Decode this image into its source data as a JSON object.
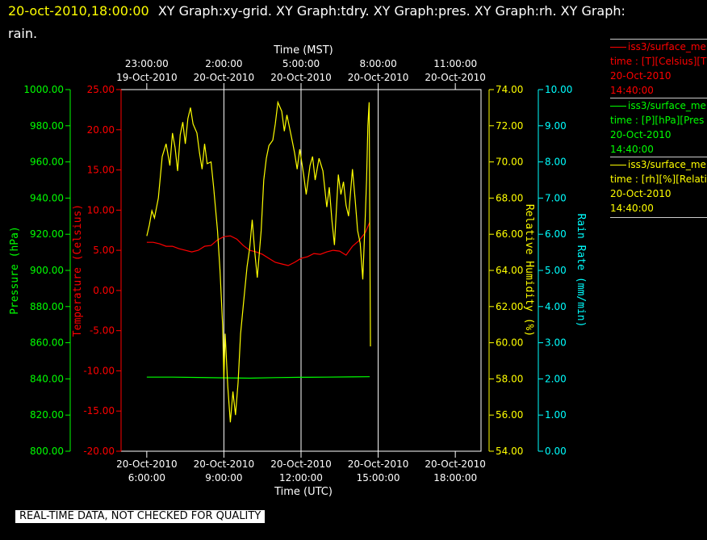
{
  "header": {
    "timestamp": "20-oct-2010,18:00:00",
    "rest_line1": "XY Graph:xy-grid.  XY Graph:tdry.  XY Graph:pres.  XY Graph:rh.  XY Graph:",
    "line2": "rain."
  },
  "legend": [
    {
      "line1": "iss3/surface_me",
      "line2": "time : [T][Celsius][T",
      "date": "20-Oct-2010",
      "time": "14:40:00",
      "color": "#ff0000"
    },
    {
      "line1": "iss3/surface_me",
      "line2": "time : [P][hPa][Pres",
      "date": "20-Oct-2010",
      "time": "14:40:00",
      "color": "#00ff00"
    },
    {
      "line1": "iss3/surface_me",
      "line2": "time : [rh][%][Relati",
      "date": "20-Oct-2010",
      "time": "14:40:00",
      "color": "#ffff00"
    }
  ],
  "notice": "REAL-TIME DATA, NOT CHECKED FOR QUALITY",
  "colors": {
    "temp": "#ff0000",
    "pres": "#00ff00",
    "rh": "#ffff00",
    "rain": "#00ffff",
    "axis": "#ffffff"
  },
  "chart_data": {
    "type": "line",
    "x_bottom": {
      "label": "Time (UTC)",
      "range_hours_utc": [
        5,
        19
      ],
      "ticks": [
        {
          "hour": 6,
          "date": "20-Oct-2010",
          "time": "6:00:00"
        },
        {
          "hour": 9,
          "date": "20-Oct-2010",
          "time": "9:00:00"
        },
        {
          "hour": 12,
          "date": "20-Oct-2010",
          "time": "12:00:00"
        },
        {
          "hour": 15,
          "date": "20-Oct-2010",
          "time": "15:00:00"
        },
        {
          "hour": 18,
          "date": "20-Oct-2010",
          "time": "18:00:00"
        }
      ]
    },
    "x_top": {
      "label": "Time (MST)",
      "ticks": [
        {
          "hour": 6,
          "time": "23:00:00",
          "date": "19-Oct-2010"
        },
        {
          "hour": 9,
          "time": "2:00:00",
          "date": "20-Oct-2010"
        },
        {
          "hour": 12,
          "time": "5:00:00",
          "date": "20-Oct-2010"
        },
        {
          "hour": 15,
          "time": "8:00:00",
          "date": "20-Oct-2010"
        },
        {
          "hour": 18,
          "time": "11:00:00",
          "date": "20-Oct-2010"
        }
      ]
    },
    "grid_hours": [
      9,
      12,
      15
    ],
    "axes": {
      "pressure": {
        "label": "Pressure (hPa)",
        "range": [
          800,
          1000
        ],
        "ticks": [
          "800.00",
          "820.00",
          "840.00",
          "860.00",
          "880.00",
          "900.00",
          "920.00",
          "940.00",
          "960.00",
          "980.00",
          "1000.00"
        ]
      },
      "temperature": {
        "label": "Temperature (Celsius)",
        "range": [
          -20,
          25
        ],
        "ticks": [
          "-20.00",
          "-15.00",
          "-10.00",
          "-5.00",
          "0.00",
          "5.00",
          "10.00",
          "15.00",
          "20.00",
          "25.00"
        ]
      },
      "humidity": {
        "label": "Relative Humidity (%)",
        "range": [
          54,
          74
        ],
        "ticks": [
          "54.00",
          "56.00",
          "58.00",
          "60.00",
          "62.00",
          "64.00",
          "66.00",
          "68.00",
          "70.00",
          "72.00",
          "74.00"
        ]
      },
      "rain": {
        "label": "Rain Rate (mm/min)",
        "range": [
          0,
          10
        ],
        "ticks": [
          "0.00",
          "1.00",
          "2.00",
          "3.00",
          "4.00",
          "5.00",
          "6.00",
          "7.00",
          "8.00",
          "9.00",
          "10.00"
        ]
      }
    },
    "series": [
      {
        "name": "[T][Celsius][T",
        "axis": "temperature",
        "x": [
          6.0,
          6.25,
          6.5,
          6.75,
          7.0,
          7.25,
          7.5,
          7.75,
          8.0,
          8.25,
          8.5,
          8.75,
          9.0,
          9.25,
          9.5,
          9.75,
          10.0,
          10.25,
          10.5,
          10.75,
          11.0,
          11.25,
          11.5,
          11.75,
          12.0,
          12.25,
          12.5,
          12.75,
          13.0,
          13.25,
          13.5,
          13.75,
          14.0,
          14.25,
          14.5,
          14.67
        ],
        "y": [
          6.0,
          6.0,
          5.8,
          5.5,
          5.5,
          5.2,
          5.0,
          4.8,
          5.0,
          5.5,
          5.6,
          6.3,
          6.7,
          6.8,
          6.4,
          5.6,
          5.0,
          4.8,
          4.5,
          4.0,
          3.5,
          3.3,
          3.1,
          3.5,
          4.0,
          4.2,
          4.6,
          4.5,
          4.8,
          5.0,
          4.9,
          4.4,
          5.5,
          6.2,
          7.2,
          8.5
        ]
      },
      {
        "name": "[P][hPa][Pres",
        "axis": "pressure",
        "x": [
          6.0,
          7.0,
          8.0,
          9.0,
          10.0,
          11.0,
          12.0,
          13.0,
          14.0,
          14.67
        ],
        "y": [
          841.0,
          841.0,
          840.8,
          840.6,
          840.4,
          840.7,
          840.9,
          841.0,
          841.1,
          841.2
        ]
      },
      {
        "name": "[rh][%][Relati",
        "axis": "humidity",
        "x": [
          6.0,
          6.1,
          6.2,
          6.3,
          6.45,
          6.6,
          6.75,
          6.9,
          7.0,
          7.1,
          7.2,
          7.3,
          7.4,
          7.5,
          7.6,
          7.7,
          7.8,
          7.95,
          8.05,
          8.15,
          8.25,
          8.35,
          8.5,
          8.6,
          8.75,
          8.85,
          8.95,
          9.0,
          9.05,
          9.15,
          9.25,
          9.35,
          9.45,
          9.55,
          9.65,
          9.75,
          9.9,
          10.0,
          10.1,
          10.2,
          10.3,
          10.45,
          10.55,
          10.65,
          10.75,
          10.9,
          11.0,
          11.1,
          11.25,
          11.35,
          11.45,
          11.55,
          11.65,
          11.75,
          11.85,
          11.95,
          12.1,
          12.2,
          12.35,
          12.45,
          12.55,
          12.7,
          12.85,
          13.0,
          13.1,
          13.2,
          13.3,
          13.45,
          13.55,
          13.65,
          13.75,
          13.85,
          14.0,
          14.1,
          14.2,
          14.3,
          14.4,
          14.5,
          14.55,
          14.6,
          14.65,
          14.7
        ],
        "y": [
          65.9,
          66.5,
          67.3,
          66.9,
          68.0,
          70.3,
          71.0,
          69.8,
          71.6,
          70.8,
          69.5,
          71.5,
          72.2,
          71.0,
          72.4,
          73.0,
          72.1,
          71.6,
          70.5,
          69.6,
          71.0,
          69.9,
          70.0,
          68.6,
          66.2,
          64.0,
          61.0,
          58.0,
          60.5,
          57.6,
          55.6,
          57.3,
          56.0,
          57.8,
          60.5,
          62.0,
          64.2,
          65.2,
          66.8,
          65.0,
          63.6,
          66.2,
          69.0,
          70.2,
          70.9,
          71.2,
          72.1,
          73.3,
          72.8,
          71.7,
          72.6,
          71.9,
          71.2,
          70.5,
          69.6,
          70.7,
          69.3,
          68.2,
          69.8,
          70.3,
          69.0,
          70.2,
          69.5,
          67.5,
          68.6,
          66.8,
          65.4,
          69.3,
          68.2,
          68.9,
          67.6,
          67.0,
          69.6,
          68.0,
          66.2,
          65.5,
          63.5,
          67.0,
          69.0,
          72.0,
          73.3,
          59.8
        ]
      },
      {
        "name": "rain",
        "axis": "rain",
        "x": [],
        "y": []
      }
    ]
  }
}
